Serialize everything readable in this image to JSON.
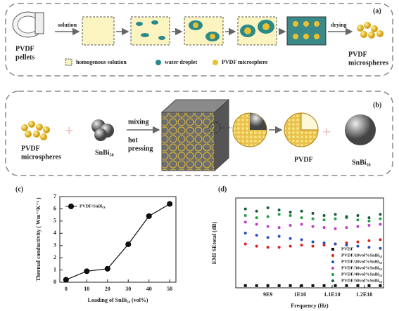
{
  "panel_a": {
    "label": "(a)",
    "pellets": [
      "PVDF",
      "pellets"
    ],
    "solution": "solution",
    "drying": "drying",
    "product": [
      "PVDF",
      "microspheres"
    ],
    "legend": [
      "homogenous solution",
      "water droplet",
      "PVDF microsphere"
    ]
  },
  "panel_b": {
    "label": "(b)",
    "microspheres": [
      "PVDF",
      "microspheres"
    ],
    "snbi": "SnBi₅₈",
    "mixing": "mixing",
    "hot_pressing": [
      "hot",
      "pressing"
    ],
    "pvdf": "PVDF",
    "snbi_sphere": "SnBi₅₈"
  },
  "chart_data": [
    {
      "type": "line",
      "panel": "(c)",
      "xlabel": "Loading of SnBi₅₈ (vol%)",
      "ylabel": "Thermal conductivity ( Wm⁻¹K⁻¹ )",
      "x": [
        0,
        10,
        20,
        30,
        40,
        50
      ],
      "xlim": [
        -3,
        53
      ],
      "xticks": [
        0,
        10,
        20,
        30,
        40,
        50
      ],
      "ylim": [
        0,
        7
      ],
      "yticks": [
        0,
        1,
        2,
        3,
        4,
        5,
        6,
        7
      ],
      "legend": "upper left",
      "series": [
        {
          "name": "PVDF/SnBi₅₈",
          "color": "#111111",
          "values": [
            0.2,
            0.9,
            1.1,
            3.1,
            5.4,
            6.4
          ]
        }
      ]
    },
    {
      "type": "scatter",
      "panel": "(d)",
      "xlabel": "Frequency (Hz)",
      "ylabel": "EMI SEtotal (dB)",
      "x": [
        8300000000,
        8650000000,
        9000000000,
        9350000000,
        9700000000,
        10050000000,
        10400000000,
        10750000000,
        11100000000,
        11450000000,
        11800000000,
        12150000000,
        12500000000
      ],
      "xlim": [
        8000000000,
        12600000000
      ],
      "xticks": [
        {
          "value": 9000000000,
          "label": "9E9"
        },
        {
          "value": 10000000000,
          "label": "1E10"
        },
        {
          "value": 11000000000,
          "label": "1.1E10"
        },
        {
          "value": 12000000000,
          "label": "1.2E10"
        }
      ],
      "ylim": [
        0,
        82
      ],
      "legend": "lower right",
      "series": [
        {
          "name": "PVDF",
          "color": "#111111",
          "values": [
            2,
            2,
            2,
            2,
            2,
            2,
            2,
            2,
            2,
            2,
            2,
            2,
            2
          ]
        },
        {
          "name": "PVDF/10vol%SnBi₅₈",
          "color": "#e02020",
          "values": [
            40,
            38,
            37,
            37,
            38,
            39,
            38,
            39,
            40,
            41,
            42,
            43,
            44
          ]
        },
        {
          "name": "PVDF/20vol%SnBi₅₈",
          "color": "#2a4fc0",
          "values": [
            50,
            48,
            46,
            47,
            45,
            44,
            42,
            41,
            40,
            39,
            38,
            37,
            36
          ]
        },
        {
          "name": "PVDF/30vol%SnBi₅₈",
          "color": "#c040c0",
          "values": [
            60,
            58,
            56,
            55,
            57,
            58,
            56,
            55,
            54,
            55,
            56,
            57,
            58
          ]
        },
        {
          "name": "PVDF/40vol%SnBi₅₈",
          "color": "#20a040",
          "values": [
            66,
            64,
            65,
            67,
            66,
            64,
            63,
            62,
            63,
            64,
            62,
            61,
            63
          ]
        },
        {
          "name": "PVDF/50vol%SnBi₅₈",
          "color": "#1a5a3a",
          "values": [
            72,
            70,
            73,
            71,
            69,
            70,
            68,
            66,
            67,
            65,
            66,
            64,
            67
          ]
        }
      ]
    }
  ]
}
